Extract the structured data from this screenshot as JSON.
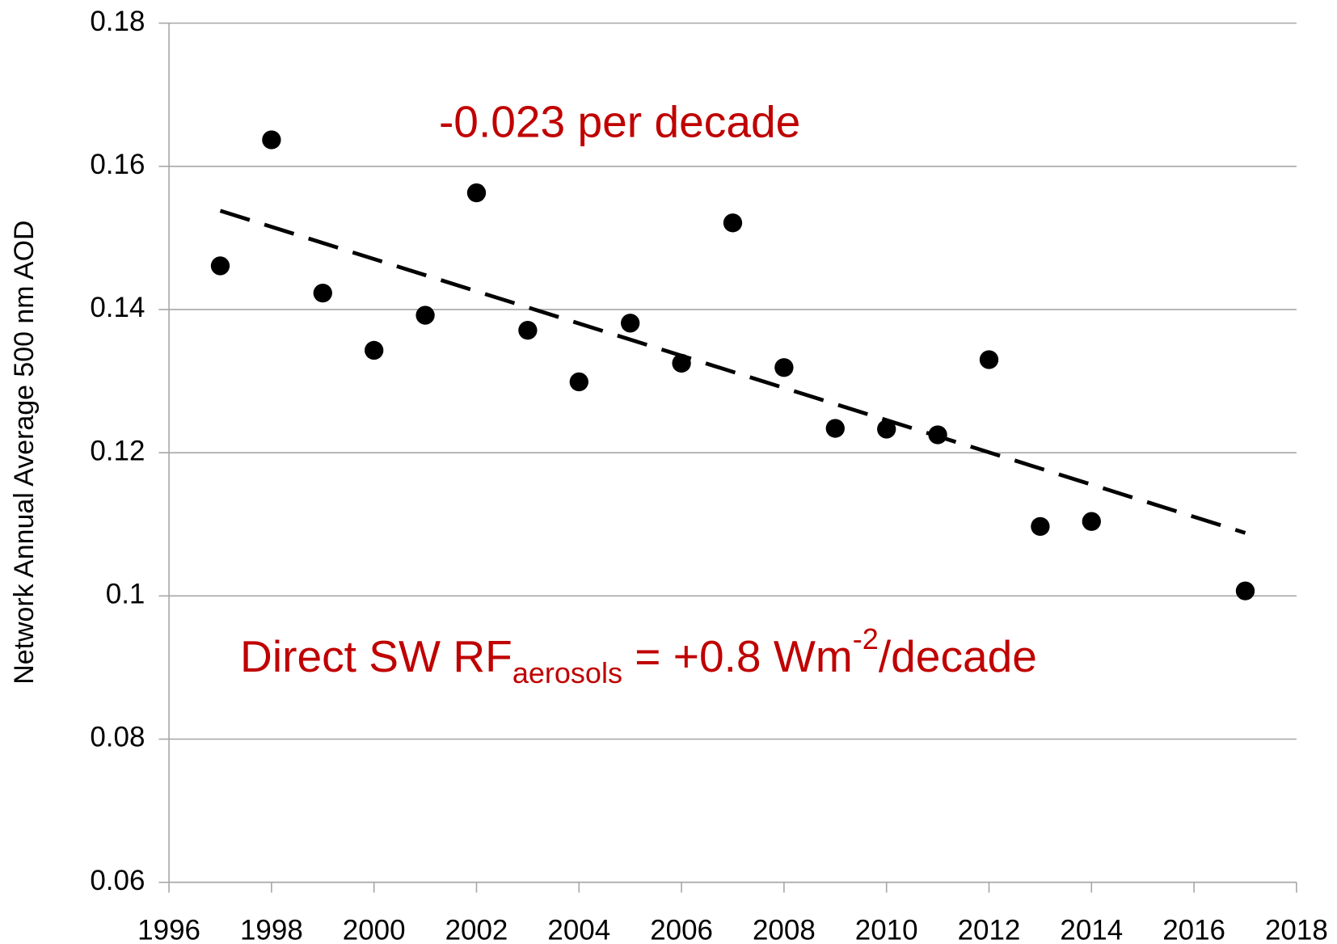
{
  "chart_data": {
    "type": "scatter",
    "y_label": "Network Annual Average 500 nm AOD",
    "x": [
      1997,
      1998,
      1999,
      2000,
      2001,
      2002,
      2003,
      2004,
      2005,
      2006,
      2007,
      2008,
      2009,
      2010,
      2011,
      2012,
      2013,
      2014,
      2017
    ],
    "values": [
      0.1461,
      0.1637,
      0.1423,
      0.1343,
      0.1392,
      0.1563,
      0.1371,
      0.1299,
      0.1381,
      0.1325,
      0.1521,
      0.1319,
      0.1234,
      0.1233,
      0.1225,
      0.133,
      0.1097,
      0.1104,
      0.1007
    ],
    "color": "#000000",
    "trendline": {
      "x": [
        1997,
        2017
      ],
      "values": [
        0.1538,
        0.1088
      ],
      "color": "#000000"
    },
    "annotations": [
      {
        "parts": [
          "-0.023 per decade"
        ]
      },
      {
        "parts": [
          "Direct SW RF",
          "aerosols",
          " = +0.8 Wm",
          "-2",
          "/decade"
        ]
      }
    ],
    "xlim": [
      1996,
      2018
    ],
    "xticks": [
      1996,
      1998,
      2000,
      2002,
      2004,
      2006,
      2008,
      2010,
      2012,
      2014,
      2016,
      2018
    ],
    "ylim": [
      0.06,
      0.18
    ],
    "yticks": [
      0.06,
      0.08,
      0.1,
      0.12,
      0.14,
      0.16,
      0.18
    ],
    "grid": true
  }
}
